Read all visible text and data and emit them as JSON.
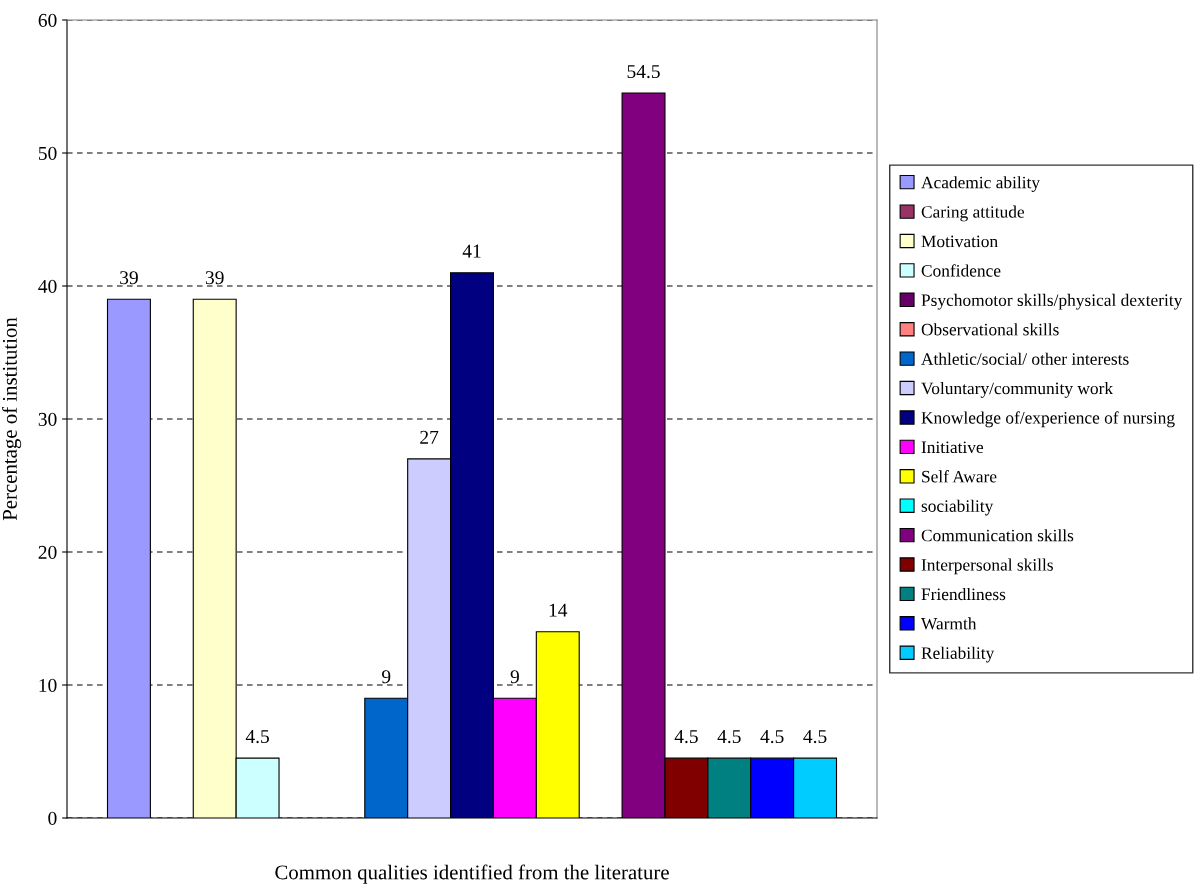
{
  "chart_data": {
    "type": "bar",
    "xlabel": "Common qualities identified from the literature",
    "ylabel": "Percentage of institution",
    "categories": [
      null
    ],
    "series": [
      {
        "name": "Academic ability",
        "color": "#9999ff",
        "values": [
          39
        ]
      },
      {
        "name": "Caring attitude",
        "color": "#993366",
        "values": [
          null
        ]
      },
      {
        "name": "Motivation",
        "color": "#ffffcc",
        "values": [
          39
        ]
      },
      {
        "name": "Confidence",
        "color": "#ccffff",
        "values": [
          4.5
        ]
      },
      {
        "name": "Psychomotor skills/physical dexterity",
        "color": "#660066",
        "values": [
          null
        ]
      },
      {
        "name": "Observational skills",
        "color": "#ff8080",
        "values": [
          null
        ]
      },
      {
        "name": "Athletic/social/ other interests",
        "color": "#0066cc",
        "values": [
          9
        ]
      },
      {
        "name": "Voluntary/community work",
        "color": "#ccccff",
        "values": [
          27
        ]
      },
      {
        "name": "Knowledge of/experience of nursing",
        "color": "#000080",
        "values": [
          41
        ]
      },
      {
        "name": "Initiative",
        "color": "#ff00ff",
        "values": [
          9
        ]
      },
      {
        "name": "Self Aware",
        "color": "#ffff00",
        "values": [
          14
        ]
      },
      {
        "name": "sociability",
        "color": "#00ffff",
        "values": [
          null
        ]
      },
      {
        "name": "Communication skills",
        "color": "#800080",
        "values": [
          54.5
        ]
      },
      {
        "name": "Interpersonal skills",
        "color": "#800000",
        "values": [
          4.5
        ]
      },
      {
        "name": "Friendliness",
        "color": "#008080",
        "values": [
          4.5
        ]
      },
      {
        "name": "Warmth",
        "color": "#0000ff",
        "values": [
          4.5
        ]
      },
      {
        "name": "Reliability",
        "color": "#00ccff",
        "values": [
          4.5
        ]
      }
    ],
    "ylim": [
      0,
      60
    ],
    "yticks": [
      0,
      10,
      20,
      30,
      40,
      50,
      60
    ],
    "grid": "y",
    "legend": "right",
    "data_labels": true
  }
}
